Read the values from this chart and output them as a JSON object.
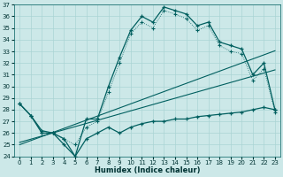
{
  "xlabel": "Humidex (Indice chaleur)",
  "background_color": "#cce8e8",
  "grid_color": "#aad4d4",
  "line_color": "#005f5f",
  "x": [
    0,
    1,
    2,
    3,
    4,
    5,
    6,
    7,
    8,
    9,
    10,
    11,
    12,
    13,
    14,
    15,
    16,
    17,
    18,
    19,
    20,
    21,
    22,
    23
  ],
  "y_max": [
    28.5,
    27.5,
    26.2,
    26.0,
    25.5,
    24.0,
    27.2,
    27.2,
    30.0,
    32.5,
    34.8,
    36.0,
    35.5,
    36.8,
    36.5,
    36.2,
    35.2,
    35.5,
    33.8,
    33.5,
    33.2,
    31.0,
    32.0,
    28.0
  ],
  "y_upper": [
    28.5,
    27.5,
    26.0,
    26.0,
    25.5,
    25.0,
    26.5,
    27.0,
    29.5,
    32.0,
    34.5,
    35.5,
    35.0,
    36.5,
    36.2,
    35.8,
    34.8,
    35.2,
    33.5,
    33.0,
    32.8,
    30.5,
    31.5,
    27.8
  ],
  "y_trend1": [
    25.0,
    25.35,
    25.7,
    26.05,
    26.4,
    26.75,
    27.1,
    27.45,
    27.8,
    28.15,
    28.5,
    28.85,
    29.2,
    29.55,
    29.9,
    30.25,
    30.6,
    30.95,
    31.3,
    31.65,
    32.0,
    32.35,
    32.7,
    33.05
  ],
  "y_trend2": [
    25.2,
    25.47,
    25.74,
    26.01,
    26.28,
    26.55,
    26.82,
    27.09,
    27.36,
    27.63,
    27.9,
    28.17,
    28.44,
    28.71,
    28.98,
    29.25,
    29.52,
    29.79,
    30.06,
    30.33,
    30.6,
    30.87,
    31.14,
    31.41
  ],
  "y_min": [
    28.5,
    27.5,
    26.0,
    26.0,
    25.0,
    24.0,
    25.5,
    26.0,
    26.5,
    26.0,
    26.5,
    26.8,
    27.0,
    27.0,
    27.2,
    27.2,
    27.4,
    27.5,
    27.6,
    27.7,
    27.8,
    28.0,
    28.2,
    28.0
  ],
  "ylim": [
    24,
    37
  ],
  "xlim": [
    -0.5,
    23.5
  ],
  "yticks": [
    24,
    25,
    26,
    27,
    28,
    29,
    30,
    31,
    32,
    33,
    34,
    35,
    36,
    37
  ],
  "xticks": [
    0,
    1,
    2,
    3,
    4,
    5,
    6,
    7,
    8,
    9,
    10,
    11,
    12,
    13,
    14,
    15,
    16,
    17,
    18,
    19,
    20,
    21,
    22,
    23
  ]
}
